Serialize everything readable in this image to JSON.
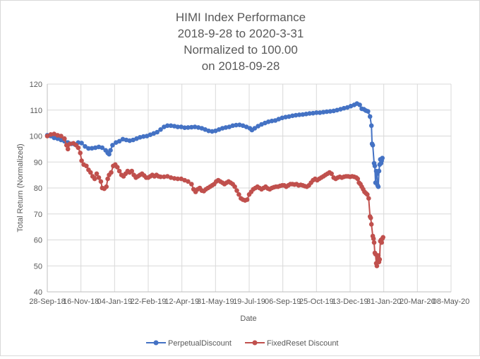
{
  "chart_data": {
    "type": "line",
    "title_lines": [
      "HIMI Index Performance",
      "2018-9-28 to 2020-3-31",
      "Normalized to 100.00",
      "on 2018-09-28"
    ],
    "xlabel": "Date",
    "ylabel": "Total Return (Normalized)",
    "ylim": [
      40,
      120
    ],
    "yticks": [
      40,
      50,
      60,
      70,
      80,
      90,
      100,
      110,
      120
    ],
    "xlim_days": [
      0,
      588
    ],
    "xticks": [
      "28-Sep-18",
      "16-Nov-18",
      "04-Jan-19",
      "22-Feb-19",
      "12-Apr-19",
      "31-May-19",
      "19-Jul-19",
      "06-Sep-19",
      "25-Oct-19",
      "13-Dec-19",
      "31-Jan-20",
      "20-Mar-20",
      "08-May-20"
    ],
    "grid": true,
    "legend_position": "bottom",
    "x_unit": "days since 28-Sep-18",
    "series": [
      {
        "name": "PerpetualDiscount",
        "color": "#4472c4",
        "points": [
          [
            0,
            100.3
          ],
          [
            5,
            100.0
          ],
          [
            10,
            99.3
          ],
          [
            15,
            99.0
          ],
          [
            20,
            98.5
          ],
          [
            25,
            98.0
          ],
          [
            30,
            97.5
          ],
          [
            35,
            97.0
          ],
          [
            40,
            96.8
          ],
          [
            45,
            97.5
          ],
          [
            50,
            97.3
          ],
          [
            55,
            96.0
          ],
          [
            60,
            95.2
          ],
          [
            65,
            95.3
          ],
          [
            70,
            95.5
          ],
          [
            75,
            95.8
          ],
          [
            80,
            95.5
          ],
          [
            85,
            94.5
          ],
          [
            88,
            93.5
          ],
          [
            90,
            93.0
          ],
          [
            92,
            94.5
          ],
          [
            95,
            96.5
          ],
          [
            100,
            97.5
          ],
          [
            105,
            98.0
          ],
          [
            110,
            98.8
          ],
          [
            115,
            98.5
          ],
          [
            120,
            98.2
          ],
          [
            125,
            98.5
          ],
          [
            130,
            99.0
          ],
          [
            135,
            99.5
          ],
          [
            140,
            99.8
          ],
          [
            145,
            100.0
          ],
          [
            150,
            100.5
          ],
          [
            155,
            101.0
          ],
          [
            160,
            101.5
          ],
          [
            165,
            102.5
          ],
          [
            170,
            103.5
          ],
          [
            175,
            104.0
          ],
          [
            180,
            104.0
          ],
          [
            185,
            103.8
          ],
          [
            190,
            103.5
          ],
          [
            195,
            103.5
          ],
          [
            200,
            103.2
          ],
          [
            205,
            103.3
          ],
          [
            210,
            103.4
          ],
          [
            215,
            103.5
          ],
          [
            220,
            103.3
          ],
          [
            225,
            103.0
          ],
          [
            230,
            102.5
          ],
          [
            235,
            102.0
          ],
          [
            240,
            101.8
          ],
          [
            245,
            102.0
          ],
          [
            250,
            102.5
          ],
          [
            255,
            103.0
          ],
          [
            260,
            103.3
          ],
          [
            265,
            103.5
          ],
          [
            270,
            104.0
          ],
          [
            275,
            104.2
          ],
          [
            280,
            104.3
          ],
          [
            285,
            104.0
          ],
          [
            290,
            103.5
          ],
          [
            295,
            103.0
          ],
          [
            298,
            102.3
          ],
          [
            302,
            103.0
          ],
          [
            307,
            103.8
          ],
          [
            312,
            104.5
          ],
          [
            317,
            105.0
          ],
          [
            322,
            105.5
          ],
          [
            327,
            105.8
          ],
          [
            332,
            106.0
          ],
          [
            337,
            106.5
          ],
          [
            342,
            107.0
          ],
          [
            347,
            107.3
          ],
          [
            352,
            107.5
          ],
          [
            357,
            107.8
          ],
          [
            362,
            108.0
          ],
          [
            367,
            108.2
          ],
          [
            372,
            108.3
          ],
          [
            377,
            108.5
          ],
          [
            382,
            108.7
          ],
          [
            387,
            108.8
          ],
          [
            392,
            109.0
          ],
          [
            397,
            109.0
          ],
          [
            402,
            109.2
          ],
          [
            407,
            109.4
          ],
          [
            412,
            109.5
          ],
          [
            417,
            109.7
          ],
          [
            422,
            110.0
          ],
          [
            427,
            110.3
          ],
          [
            432,
            110.7
          ],
          [
            437,
            111.0
          ],
          [
            442,
            111.5
          ],
          [
            447,
            112.0
          ],
          [
            451,
            112.5
          ],
          [
            455,
            112.0
          ],
          [
            458,
            110.5
          ],
          [
            461,
            110.3
          ],
          [
            464,
            109.8
          ],
          [
            467,
            109.5
          ],
          [
            470,
            107.5
          ],
          [
            472,
            104.0
          ],
          [
            473,
            97.0
          ],
          [
            474,
            96.5
          ],
          [
            476,
            89.5
          ],
          [
            477,
            88.5
          ],
          [
            478,
            82.0
          ],
          [
            479,
            86.5
          ],
          [
            480,
            85.5
          ],
          [
            481,
            81.0
          ],
          [
            482,
            80.5
          ],
          [
            483,
            86.5
          ],
          [
            484,
            89.0
          ],
          [
            485,
            91.0
          ],
          [
            486,
            89.5
          ],
          [
            487,
            90.5
          ],
          [
            488,
            91.5
          ]
        ]
      },
      {
        "name": "FixedReset Discount",
        "color": "#c0504d",
        "points": [
          [
            0,
            100.0
          ],
          [
            5,
            100.6
          ],
          [
            10,
            100.8
          ],
          [
            15,
            100.3
          ],
          [
            20,
            100.0
          ],
          [
            25,
            99.0
          ],
          [
            28,
            96.5
          ],
          [
            30,
            95.0
          ],
          [
            33,
            97.0
          ],
          [
            38,
            97.2
          ],
          [
            42,
            96.5
          ],
          [
            45,
            95.5
          ],
          [
            48,
            93.5
          ],
          [
            50,
            90.5
          ],
          [
            53,
            89.0
          ],
          [
            57,
            88.5
          ],
          [
            60,
            87.0
          ],
          [
            63,
            86.0
          ],
          [
            66,
            84.5
          ],
          [
            69,
            83.5
          ],
          [
            72,
            85.5
          ],
          [
            75,
            84.0
          ],
          [
            78,
            82.5
          ],
          [
            80,
            80.0
          ],
          [
            83,
            79.7
          ],
          [
            86,
            80.5
          ],
          [
            88,
            83.5
          ],
          [
            90,
            85.0
          ],
          [
            93,
            86.0
          ],
          [
            96,
            88.5
          ],
          [
            99,
            89.0
          ],
          [
            102,
            88.0
          ],
          [
            105,
            86.5
          ],
          [
            108,
            85.0
          ],
          [
            111,
            84.5
          ],
          [
            114,
            85.5
          ],
          [
            117,
            86.5
          ],
          [
            120,
            86.0
          ],
          [
            123,
            86.5
          ],
          [
            126,
            85.0
          ],
          [
            129,
            84.0
          ],
          [
            132,
            84.5
          ],
          [
            135,
            85.0
          ],
          [
            138,
            85.5
          ],
          [
            141,
            84.8
          ],
          [
            144,
            84.0
          ],
          [
            147,
            84.0
          ],
          [
            150,
            84.5
          ],
          [
            153,
            85.0
          ],
          [
            156,
            84.5
          ],
          [
            159,
            85.0
          ],
          [
            162,
            84.5
          ],
          [
            165,
            84.3
          ],
          [
            170,
            84.3
          ],
          [
            175,
            84.5
          ],
          [
            180,
            84.0
          ],
          [
            185,
            83.7
          ],
          [
            190,
            83.5
          ],
          [
            195,
            83.5
          ],
          [
            200,
            83.0
          ],
          [
            205,
            82.5
          ],
          [
            210,
            81.5
          ],
          [
            213,
            79.5
          ],
          [
            216,
            78.5
          ],
          [
            219,
            79.5
          ],
          [
            222,
            80.0
          ],
          [
            225,
            79.0
          ],
          [
            228,
            78.8
          ],
          [
            231,
            79.5
          ],
          [
            234,
            80.0
          ],
          [
            237,
            80.5
          ],
          [
            240,
            81.0
          ],
          [
            243,
            81.5
          ],
          [
            246,
            82.5
          ],
          [
            249,
            83.0
          ],
          [
            252,
            82.5
          ],
          [
            255,
            82.0
          ],
          [
            258,
            81.5
          ],
          [
            261,
            82.0
          ],
          [
            264,
            82.5
          ],
          [
            267,
            82.0
          ],
          [
            270,
            81.5
          ],
          [
            273,
            80.5
          ],
          [
            276,
            79.0
          ],
          [
            279,
            77.5
          ],
          [
            282,
            76.0
          ],
          [
            285,
            75.5
          ],
          [
            288,
            75.2
          ],
          [
            291,
            75.5
          ],
          [
            294,
            77.5
          ],
          [
            297,
            78.5
          ],
          [
            300,
            79.5
          ],
          [
            303,
            80.0
          ],
          [
            306,
            80.5
          ],
          [
            309,
            80.0
          ],
          [
            312,
            79.5
          ],
          [
            315,
            80.0
          ],
          [
            318,
            80.5
          ],
          [
            321,
            79.8
          ],
          [
            324,
            79.5
          ],
          [
            327,
            80.0
          ],
          [
            330,
            80.3
          ],
          [
            333,
            80.5
          ],
          [
            336,
            80.5
          ],
          [
            339,
            80.8
          ],
          [
            342,
            81.0
          ],
          [
            345,
            81.0
          ],
          [
            348,
            80.5
          ],
          [
            351,
            81.0
          ],
          [
            354,
            81.5
          ],
          [
            357,
            81.5
          ],
          [
            360,
            81.3
          ],
          [
            363,
            81.5
          ],
          [
            366,
            81.0
          ],
          [
            369,
            81.2
          ],
          [
            372,
            81.0
          ],
          [
            375,
            80.7
          ],
          [
            378,
            80.5
          ],
          [
            381,
            81.0
          ],
          [
            384,
            82.0
          ],
          [
            387,
            83.0
          ],
          [
            390,
            83.5
          ],
          [
            393,
            83.0
          ],
          [
            396,
            83.5
          ],
          [
            399,
            84.0
          ],
          [
            402,
            84.5
          ],
          [
            405,
            85.0
          ],
          [
            408,
            85.5
          ],
          [
            411,
            86.0
          ],
          [
            414,
            85.5
          ],
          [
            417,
            84.0
          ],
          [
            420,
            83.5
          ],
          [
            423,
            84.0
          ],
          [
            426,
            84.3
          ],
          [
            429,
            84.0
          ],
          [
            432,
            84.3
          ],
          [
            435,
            84.5
          ],
          [
            438,
            84.5
          ],
          [
            441,
            84.3
          ],
          [
            444,
            84.5
          ],
          [
            447,
            84.3
          ],
          [
            450,
            84.0
          ],
          [
            452,
            83.5
          ],
          [
            454,
            82.0
          ],
          [
            456,
            81.5
          ],
          [
            458,
            80.5
          ],
          [
            460,
            79.5
          ],
          [
            462,
            78.5
          ],
          [
            464,
            78.0
          ],
          [
            466,
            77.5
          ],
          [
            468,
            76.0
          ],
          [
            470,
            69.0
          ],
          [
            471,
            68.5
          ],
          [
            472,
            66.0
          ],
          [
            474,
            61.5
          ],
          [
            475,
            60.5
          ],
          [
            476,
            59.0
          ],
          [
            477,
            55.0
          ],
          [
            478,
            54.5
          ],
          [
            479,
            51.0
          ],
          [
            480,
            50.0
          ],
          [
            481,
            53.0
          ],
          [
            482,
            54.0
          ],
          [
            483,
            51.5
          ],
          [
            484,
            52.5
          ],
          [
            485,
            59.5
          ],
          [
            486,
            60.0
          ],
          [
            487,
            59.0
          ],
          [
            488,
            60.5
          ],
          [
            489,
            61.0
          ]
        ]
      }
    ]
  }
}
